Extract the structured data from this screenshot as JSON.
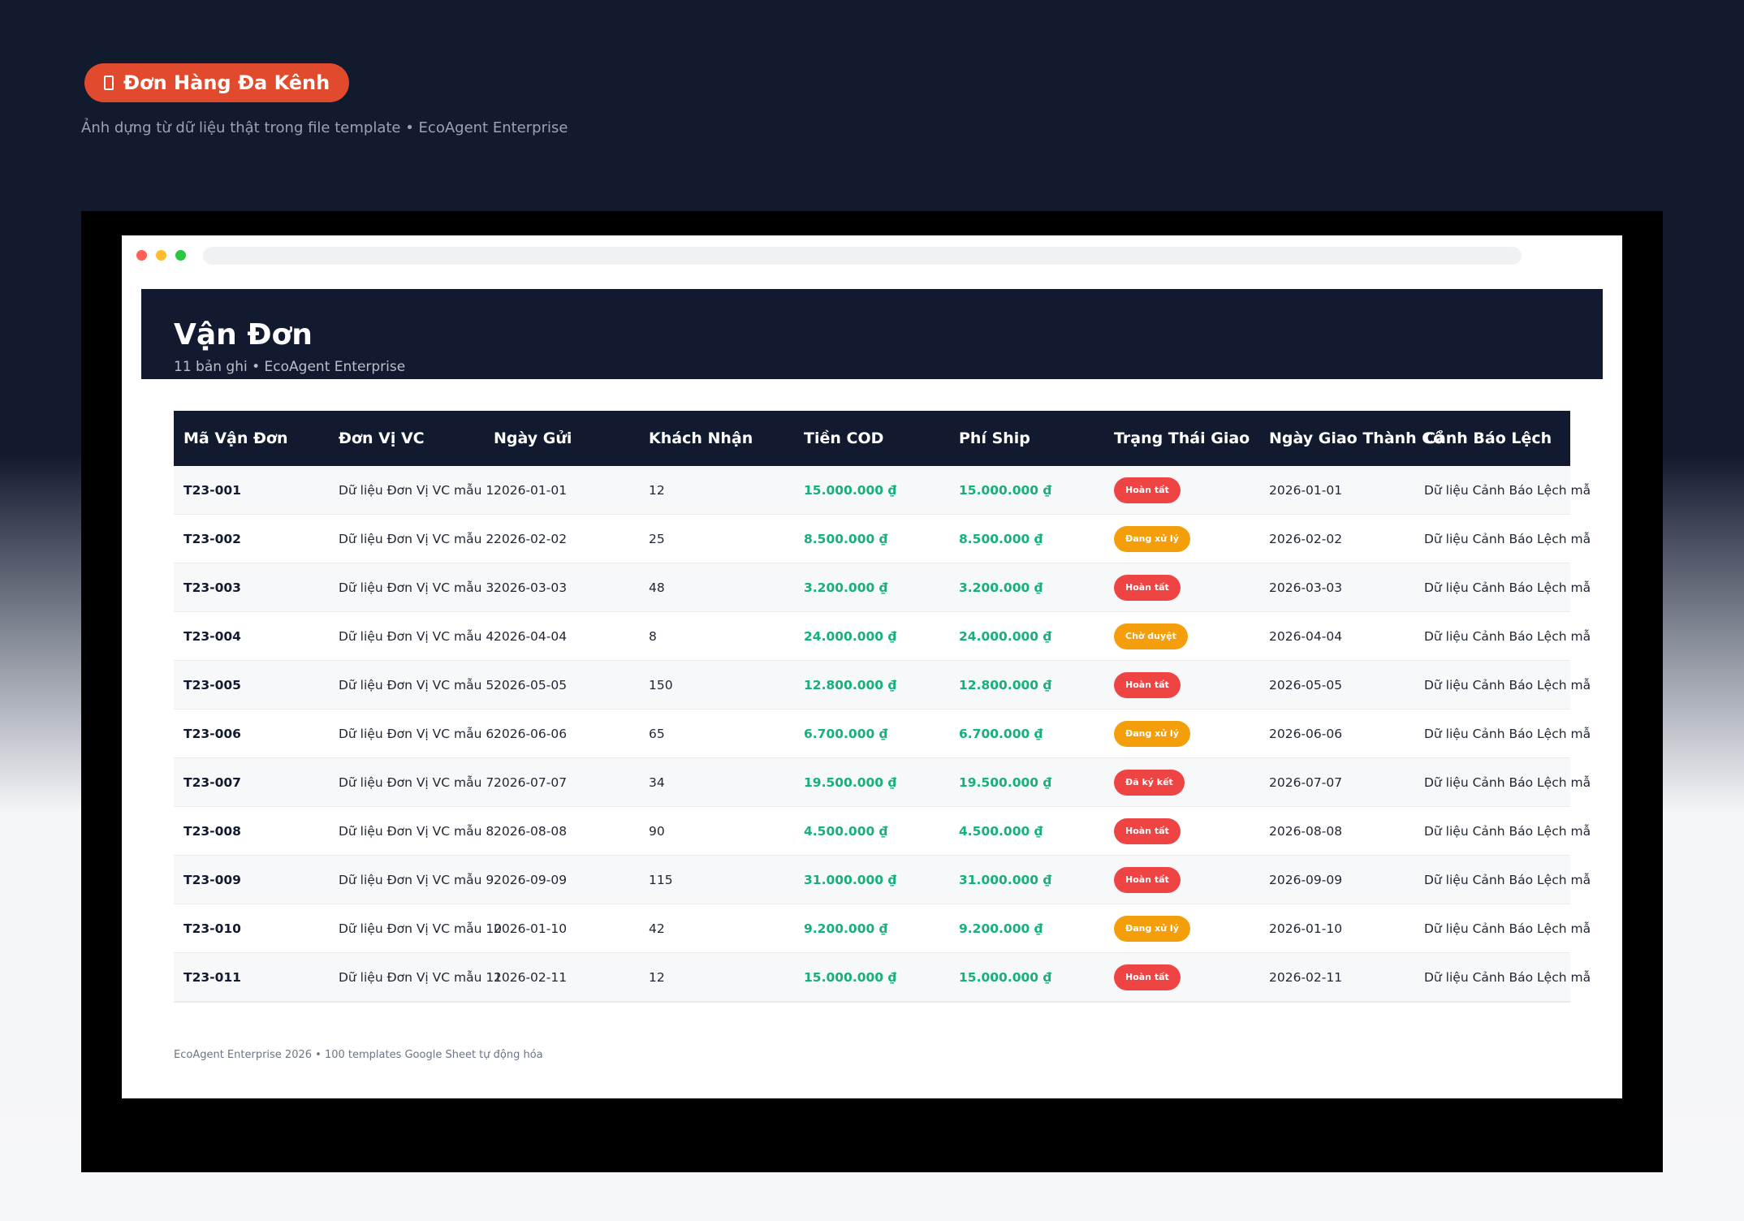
{
  "badge": {
    "label": "Đơn Hàng Đa Kênh",
    "icon": "document-icon"
  },
  "subtitle": "Ảnh dựng từ dữ liệu thật trong file template • EcoAgent Enterprise",
  "window": {
    "dot_colors": [
      "#ff5f57",
      "#febc2e",
      "#28c840"
    ]
  },
  "sheet": {
    "title": "Vận Đơn",
    "meta": "11 bản ghi • EcoAgent Enterprise"
  },
  "table": {
    "columns": [
      "Mã Vận Đơn",
      "Đơn Vị VC",
      "Ngày Gửi",
      "Khách Nhận",
      "Tiền COD",
      "Phí Ship",
      "Trạng Thái Giao",
      "Ngày Giao Thành Cô",
      "Cảnh Báo Lệch"
    ],
    "rows": [
      {
        "code": "T23-001",
        "carrier": "Dữ liệu Đơn Vị VC mẫu 1",
        "sent": "2026-01-01",
        "receiver": "12",
        "cod": "15.000.000 ₫",
        "ship": "15.000.000 ₫",
        "status": "Hoàn tất",
        "status_color": "#ef4444",
        "delivered": "2026-01-01",
        "warning": "Dữ liệu Cảnh Báo Lệch mẫ"
      },
      {
        "code": "T23-002",
        "carrier": "Dữ liệu Đơn Vị VC mẫu 2",
        "sent": "2026-02-02",
        "receiver": "25",
        "cod": "8.500.000 ₫",
        "ship": "8.500.000 ₫",
        "status": "Đang xử lý",
        "status_color": "#f59e0b",
        "delivered": "2026-02-02",
        "warning": "Dữ liệu Cảnh Báo Lệch mẫ"
      },
      {
        "code": "T23-003",
        "carrier": "Dữ liệu Đơn Vị VC mẫu 3",
        "sent": "2026-03-03",
        "receiver": "48",
        "cod": "3.200.000 ₫",
        "ship": "3.200.000 ₫",
        "status": "Hoàn tất",
        "status_color": "#ef4444",
        "delivered": "2026-03-03",
        "warning": "Dữ liệu Cảnh Báo Lệch mẫ"
      },
      {
        "code": "T23-004",
        "carrier": "Dữ liệu Đơn Vị VC mẫu 4",
        "sent": "2026-04-04",
        "receiver": "8",
        "cod": "24.000.000 ₫",
        "ship": "24.000.000 ₫",
        "status": "Chờ duyệt",
        "status_color": "#f59e0b",
        "delivered": "2026-04-04",
        "warning": "Dữ liệu Cảnh Báo Lệch mẫ"
      },
      {
        "code": "T23-005",
        "carrier": "Dữ liệu Đơn Vị VC mẫu 5",
        "sent": "2026-05-05",
        "receiver": "150",
        "cod": "12.800.000 ₫",
        "ship": "12.800.000 ₫",
        "status": "Hoàn tất",
        "status_color": "#ef4444",
        "delivered": "2026-05-05",
        "warning": "Dữ liệu Cảnh Báo Lệch mẫ"
      },
      {
        "code": "T23-006",
        "carrier": "Dữ liệu Đơn Vị VC mẫu 6",
        "sent": "2026-06-06",
        "receiver": "65",
        "cod": "6.700.000 ₫",
        "ship": "6.700.000 ₫",
        "status": "Đang xử lý",
        "status_color": "#f59e0b",
        "delivered": "2026-06-06",
        "warning": "Dữ liệu Cảnh Báo Lệch mẫ"
      },
      {
        "code": "T23-007",
        "carrier": "Dữ liệu Đơn Vị VC mẫu 7",
        "sent": "2026-07-07",
        "receiver": "34",
        "cod": "19.500.000 ₫",
        "ship": "19.500.000 ₫",
        "status": "Đã ký kết",
        "status_color": "#ef4444",
        "delivered": "2026-07-07",
        "warning": "Dữ liệu Cảnh Báo Lệch mẫ"
      },
      {
        "code": "T23-008",
        "carrier": "Dữ liệu Đơn Vị VC mẫu 8",
        "sent": "2026-08-08",
        "receiver": "90",
        "cod": "4.500.000 ₫",
        "ship": "4.500.000 ₫",
        "status": "Hoàn tất",
        "status_color": "#ef4444",
        "delivered": "2026-08-08",
        "warning": "Dữ liệu Cảnh Báo Lệch mẫ"
      },
      {
        "code": "T23-009",
        "carrier": "Dữ liệu Đơn Vị VC mẫu 9",
        "sent": "2026-09-09",
        "receiver": "115",
        "cod": "31.000.000 ₫",
        "ship": "31.000.000 ₫",
        "status": "Hoàn tất",
        "status_color": "#ef4444",
        "delivered": "2026-09-09",
        "warning": "Dữ liệu Cảnh Báo Lệch mẫ"
      },
      {
        "code": "T23-010",
        "carrier": "Dữ liệu Đơn Vị VC mẫu 10",
        "sent": "2026-01-10",
        "receiver": "42",
        "cod": "9.200.000 ₫",
        "ship": "9.200.000 ₫",
        "status": "Đang xử lý",
        "status_color": "#f59e0b",
        "delivered": "2026-01-10",
        "warning": "Dữ liệu Cảnh Báo Lệch mẫ"
      },
      {
        "code": "T23-011",
        "carrier": "Dữ liệu Đơn Vị VC mẫu 11",
        "sent": "2026-02-11",
        "receiver": "12",
        "cod": "15.000.000 ₫",
        "ship": "15.000.000 ₫",
        "status": "Hoàn tất",
        "status_color": "#ef4444",
        "delivered": "2026-02-11",
        "warning": "Dữ liệu Cảnh Báo Lệch mẫ"
      }
    ]
  },
  "footer": "EcoAgent Enterprise 2026 • 100 templates Google Sheet tự động hóa",
  "colors": {
    "accent": "#e24a2d",
    "header_bg": "#111a2e",
    "money": "#16b07a"
  }
}
